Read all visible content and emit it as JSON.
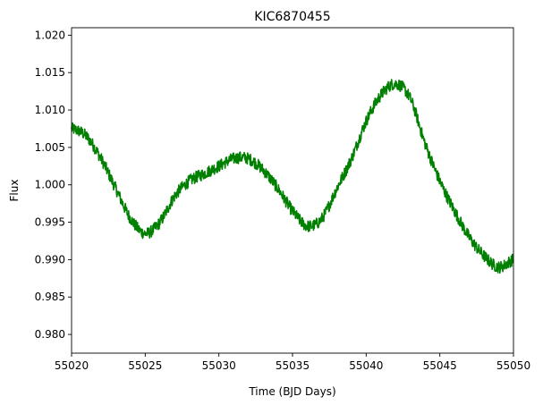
{
  "chart_data": {
    "type": "line",
    "title": "KIC6870455",
    "xlabel": "Time (BJD Days)",
    "ylabel": "Flux",
    "xlim": [
      55020,
      55050
    ],
    "ylim": [
      0.9775,
      1.021
    ],
    "xticks": [
      55020,
      55025,
      55030,
      55035,
      55040,
      55045,
      55050
    ],
    "yticks": [
      0.98,
      0.985,
      0.99,
      0.995,
      1.0,
      1.005,
      1.01,
      1.015,
      1.02
    ],
    "xtick_labels": [
      "55020",
      "55025",
      "55030",
      "55035",
      "55040",
      "55045",
      "55050"
    ],
    "ytick_labels": [
      "0.980",
      "0.985",
      "0.990",
      "0.995",
      "1.000",
      "1.005",
      "1.010",
      "1.015",
      "1.020"
    ],
    "grid": false,
    "series": [
      {
        "color": "#008000",
        "x": [
          55020.0,
          55021.0,
          55022.0,
          55023.0,
          55024.0,
          55025.0,
          55026.0,
          55027.0,
          55028.0,
          55029.0,
          55030.0,
          55031.0,
          55032.0,
          55033.0,
          55034.0,
          55035.0,
          55036.0,
          55037.0,
          55038.0,
          55039.0,
          55040.0,
          55041.0,
          55042.0,
          55043.0,
          55044.0,
          55045.0,
          55046.0,
          55047.0,
          55048.0,
          55049.0,
          55050.0
        ],
        "y": [
          1.0075,
          1.0065,
          1.0035,
          0.9995,
          0.9955,
          0.9935,
          0.995,
          0.9985,
          1.0005,
          1.0015,
          1.0025,
          1.0035,
          1.0035,
          1.002,
          0.9995,
          0.9965,
          0.9945,
          0.9955,
          0.9995,
          1.0035,
          1.0085,
          1.012,
          1.0135,
          1.0115,
          1.0055,
          1.0005,
          0.9965,
          0.993,
          0.9905,
          0.989,
          0.99
        ]
      }
    ]
  }
}
